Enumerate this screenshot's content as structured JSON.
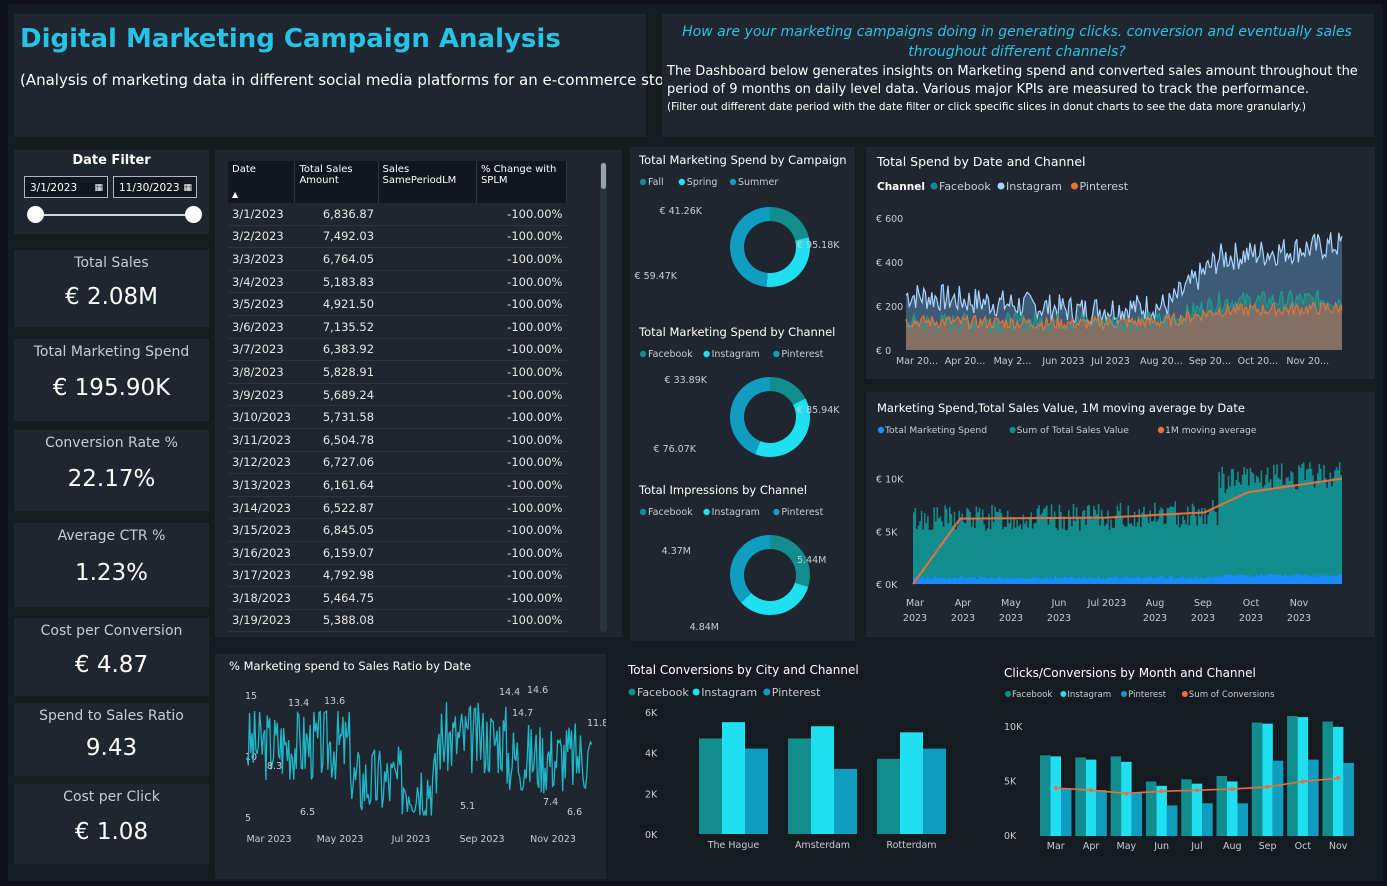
{
  "header": {
    "title": "Digital Marketing Campaign Analysis",
    "subtitle": "(Analysis of marketing data in different social media platforms for an e-commerce store)",
    "question": "How are  your marketing campaigns doing in generating clicks. conversion and eventually sales throughout different channels?",
    "description": "The Dashboard below generates insights on Marketing spend and converted sales amount throughout the  period of 9 months on daily level data. Various major KPIs are measured to track the performance.",
    "note": "(Filter out different date period with the date filter or click specific slices in donut charts to see the data more granularly.)"
  },
  "date_filter": {
    "label": "Date Filter",
    "start": "3/1/2023",
    "end": "11/30/2023"
  },
  "kpis": [
    {
      "label": "Total Sales",
      "value": "€ 2.08M"
    },
    {
      "label": "Total Marketing Spend",
      "value": "€ 195.90K"
    },
    {
      "label": "Conversion Rate %",
      "value": "22.17%"
    },
    {
      "label": "Average CTR %",
      "value": "1.23%"
    },
    {
      "label": "Cost per Conversion",
      "value": "€ 4.87"
    },
    {
      "label": "Spend to Sales Ratio",
      "value": "9.43"
    },
    {
      "label": "Cost per Click",
      "value": "€ 1.08"
    }
  ],
  "table": {
    "headers": [
      "Date",
      "Total Sales Amount",
      "Sales SamePeriodLM",
      "% Change with SPLM"
    ],
    "rows": [
      [
        "3/1/2023",
        "6,836.87",
        "",
        "-100.00%"
      ],
      [
        "3/2/2023",
        "7,492.03",
        "",
        "-100.00%"
      ],
      [
        "3/3/2023",
        "6,764.05",
        "",
        "-100.00%"
      ],
      [
        "3/4/2023",
        "5,183.83",
        "",
        "-100.00%"
      ],
      [
        "3/5/2023",
        "4,921.50",
        "",
        "-100.00%"
      ],
      [
        "3/6/2023",
        "7,135.52",
        "",
        "-100.00%"
      ],
      [
        "3/7/2023",
        "6,383.92",
        "",
        "-100.00%"
      ],
      [
        "3/8/2023",
        "5,828.91",
        "",
        "-100.00%"
      ],
      [
        "3/9/2023",
        "5,689.24",
        "",
        "-100.00%"
      ],
      [
        "3/10/2023",
        "5,731.58",
        "",
        "-100.00%"
      ],
      [
        "3/11/2023",
        "6,504.78",
        "",
        "-100.00%"
      ],
      [
        "3/12/2023",
        "6,727.06",
        "",
        "-100.00%"
      ],
      [
        "3/13/2023",
        "6,161.64",
        "",
        "-100.00%"
      ],
      [
        "3/14/2023",
        "6,522.87",
        "",
        "-100.00%"
      ],
      [
        "3/15/2023",
        "6,845.05",
        "",
        "-100.00%"
      ],
      [
        "3/16/2023",
        "6,159.07",
        "",
        "-100.00%"
      ],
      [
        "3/17/2023",
        "4,792.98",
        "",
        "-100.00%"
      ],
      [
        "3/18/2023",
        "5,464.75",
        "",
        "-100.00%"
      ],
      [
        "3/19/2023",
        "5,388.08",
        "",
        "-100.00%"
      ]
    ]
  },
  "colors": {
    "facebook": "#118d8e",
    "instagram": "#1fe0f0",
    "pinterest": "#0f9ec2",
    "fall": "#118d8e",
    "spring": "#1fe0f0",
    "summer": "#0f9ec2",
    "spend": "#1a8cff",
    "sales": "#118d8e",
    "moving": "#e8703a",
    "conversions": "#e8703a",
    "ratio": "#1eb8c8"
  },
  "chart_data": [
    {
      "type": "pie",
      "title": "Total Marketing Spend by Campaign",
      "labels": [
        "Fall",
        "Spring",
        "Summer"
      ],
      "values": [
        41.26,
        59.47,
        95.18
      ],
      "value_labels": [
        "€ 41.26K",
        "€ 59.47K",
        "€ 95.18K"
      ]
    },
    {
      "type": "pie",
      "title": "Total Marketing Spend by Channel",
      "labels": [
        "Facebook",
        "Instagram",
        "Pinterest"
      ],
      "values": [
        33.89,
        76.07,
        85.94
      ],
      "value_labels": [
        "€ 33.89K",
        "€ 76.07K",
        "€ 85.94K"
      ]
    },
    {
      "type": "pie",
      "title": "Total Impressions by Channel",
      "labels": [
        "Facebook",
        "Instagram",
        "Pinterest"
      ],
      "values": [
        4.37,
        4.84,
        5.44
      ],
      "value_labels": [
        "4.37M",
        "4.84M",
        "5.44M"
      ]
    },
    {
      "type": "area",
      "title": "Total Spend by Date and Channel",
      "legend_title": "Channel",
      "series": [
        {
          "name": "Facebook",
          "levels": [
            [
              0,
              120
            ],
            [
              0.4,
              130
            ],
            [
              0.6,
              130
            ],
            [
              0.72,
              220
            ],
            [
              1,
              230
            ]
          ]
        },
        {
          "name": "Instagram",
          "levels": [
            [
              0,
              250
            ],
            [
              0.4,
              180
            ],
            [
              0.6,
              200
            ],
            [
              0.72,
              420
            ],
            [
              1,
              480
            ]
          ]
        },
        {
          "name": "Pinterest",
          "levels": [
            [
              0,
              130
            ],
            [
              0.4,
              120
            ],
            [
              0.6,
              130
            ],
            [
              0.72,
              180
            ],
            [
              1,
              190
            ]
          ]
        }
      ],
      "x_ticks": [
        "Mar 20...",
        "Apr 20...",
        "May 2...",
        "Jun 2023",
        "Jul 2023",
        "Aug 20...",
        "Sep 20...",
        "Oct 20...",
        "Nov 20..."
      ],
      "y_ticks": [
        "€ 600",
        "€ 400",
        "€ 200",
        "€ 0"
      ],
      "ylim": [
        0,
        650
      ]
    },
    {
      "type": "bar",
      "title": "Marketing Spend,Total Sales Value, 1M moving average by Date",
      "series": [
        {
          "name": "Total Marketing Spend",
          "approx": 600
        },
        {
          "name": "Sum of Total Sales Value",
          "levels": [
            [
              0,
              6200
            ],
            [
              0.42,
              6300
            ],
            [
              0.7,
              6800
            ],
            [
              0.71,
              9800
            ],
            [
              1,
              10500
            ]
          ]
        },
        {
          "name": "1M moving average",
          "points": [
            [
              0,
              0
            ],
            [
              0.11,
              6200
            ],
            [
              0.45,
              6300
            ],
            [
              0.68,
              6800
            ],
            [
              0.78,
              8700
            ],
            [
              1,
              10000
            ]
          ]
        }
      ],
      "x_ticks": [
        [
          "Mar",
          "2023"
        ],
        [
          "Apr",
          "2023"
        ],
        [
          "May",
          "2023"
        ],
        [
          "Jun",
          "2023"
        ],
        [
          "Jul 2023",
          ""
        ],
        [
          "Aug",
          "2023"
        ],
        [
          "Sep",
          "2023"
        ],
        [
          "Oct",
          "2023"
        ],
        [
          "Nov",
          "2023"
        ]
      ],
      "y_ticks": [
        "€ 10K",
        "€ 5K",
        "€ 0K"
      ],
      "ylim": [
        0,
        13000
      ]
    },
    {
      "type": "line",
      "title": "% Marketing spend to Sales Ratio by Date",
      "annotations": [
        "13.4",
        "13.6",
        "14.4",
        "14.6",
        "14.7",
        "11.8",
        "8.3",
        "6.5",
        "5.1",
        "7.4",
        "6.6"
      ],
      "x_ticks": [
        "Mar 2023",
        "May 2023",
        "Jul 2023",
        "Sep 2023",
        "Nov 2023"
      ],
      "y_ticks": [
        "15",
        "10",
        "5"
      ],
      "ylim": [
        5,
        15
      ]
    },
    {
      "type": "bar",
      "title": "Total Conversions by City and Channel",
      "categories": [
        "The Hague",
        "Amsterdam",
        "Rotterdam"
      ],
      "series": [
        {
          "name": "Facebook",
          "values": [
            4700,
            4700,
            3700
          ]
        },
        {
          "name": "Instagram",
          "values": [
            5500,
            5300,
            5000
          ]
        },
        {
          "name": "Pinterest",
          "values": [
            4200,
            3200,
            4200
          ]
        }
      ],
      "y_ticks": [
        "6K",
        "4K",
        "2K",
        "0K"
      ],
      "ylim": [
        0,
        6000
      ]
    },
    {
      "type": "bar",
      "title": "Clicks/Conversions by Month and Channel",
      "categories": [
        "Mar",
        "Apr",
        "May",
        "Jun",
        "Jul",
        "Aug",
        "Sep",
        "Oct",
        "Nov"
      ],
      "series": [
        {
          "name": "Facebook",
          "values": [
            7400,
            7200,
            7300,
            5000,
            5200,
            5500,
            10400,
            11000,
            10500
          ]
        },
        {
          "name": "Instagram",
          "values": [
            7300,
            7000,
            6800,
            4600,
            4800,
            5000,
            10300,
            10900,
            10000
          ]
        },
        {
          "name": "Pinterest",
          "values": [
            4400,
            4200,
            4000,
            2800,
            3000,
            3000,
            6900,
            7000,
            6700
          ]
        },
        {
          "name": "Sum of Conversions",
          "values": [
            4400,
            4200,
            3900,
            4100,
            4200,
            4300,
            4500,
            5000,
            5300
          ]
        }
      ],
      "y_ticks": [
        "10K",
        "5K",
        "0K"
      ],
      "ylim": [
        0,
        11000
      ]
    }
  ]
}
